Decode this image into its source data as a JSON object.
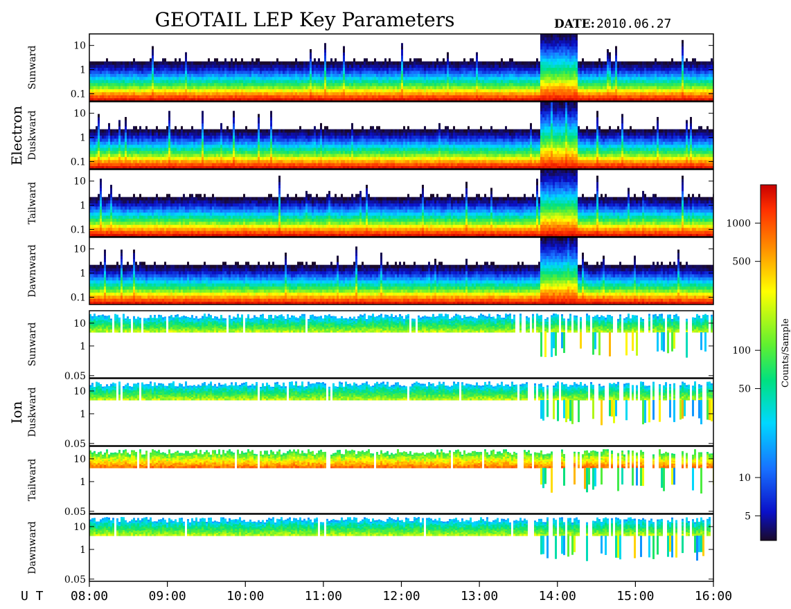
{
  "chart_data": {
    "type": "heatmap",
    "title": "GEOTAIL LEP Key Parameters",
    "date_label": "DATE:",
    "date_value": "2010.06.27",
    "x_axis": {
      "label": "U T",
      "range": [
        "08:00",
        "16:00"
      ],
      "ticks": [
        "08:00",
        "09:00",
        "10:00",
        "11:00",
        "12:00",
        "13:00",
        "14:00",
        "15:00",
        "16:00"
      ]
    },
    "groups": [
      {
        "name": "Electron",
        "panels": [
          {
            "label": "Sunward",
            "y_ticks": [
              "10",
              "1",
              "0.1"
            ],
            "y_scale": "log",
            "y_range": [
              0.05,
              30
            ]
          },
          {
            "label": "Duskward",
            "y_ticks": [
              "10",
              "1",
              "0.1"
            ],
            "y_scale": "log",
            "y_range": [
              0.05,
              30
            ]
          },
          {
            "label": "Tailward",
            "y_ticks": [
              "10",
              "1",
              "0.1"
            ],
            "y_scale": "log",
            "y_range": [
              0.05,
              30
            ]
          },
          {
            "label": "Dawnward",
            "y_ticks": [
              "10",
              "1",
              "0.1"
            ],
            "y_scale": "log",
            "y_range": [
              0.05,
              30
            ]
          }
        ]
      },
      {
        "name": "Ion",
        "panels": [
          {
            "label": "Sunward",
            "y_ticks": [
              "10",
              "1",
              "0.05"
            ],
            "y_scale": "log",
            "y_range": [
              0.04,
              35
            ]
          },
          {
            "label": "Duskward",
            "y_ticks": [
              "10",
              "1",
              "0.05"
            ],
            "y_scale": "log",
            "y_range": [
              0.04,
              35
            ]
          },
          {
            "label": "Tailward",
            "y_ticks": [
              "10",
              "1",
              "0.05"
            ],
            "y_scale": "log",
            "y_range": [
              0.04,
              35
            ]
          },
          {
            "label": "Dawnward",
            "y_ticks": [
              "10",
              "1",
              "0.05"
            ],
            "y_scale": "log",
            "y_range": [
              0.04,
              35
            ]
          }
        ]
      }
    ],
    "colorbar": {
      "label": "Counts/Sample",
      "scale": "log",
      "ticks": [
        "1000",
        "500",
        "100",
        "50",
        "10",
        "5"
      ],
      "colormap": [
        "#1a0a2a",
        "#0a10c8",
        "#1870ff",
        "#00d8ff",
        "#00e080",
        "#60f030",
        "#ffff00",
        "#ff9000",
        "#ff3000",
        "#c80000"
      ]
    }
  }
}
